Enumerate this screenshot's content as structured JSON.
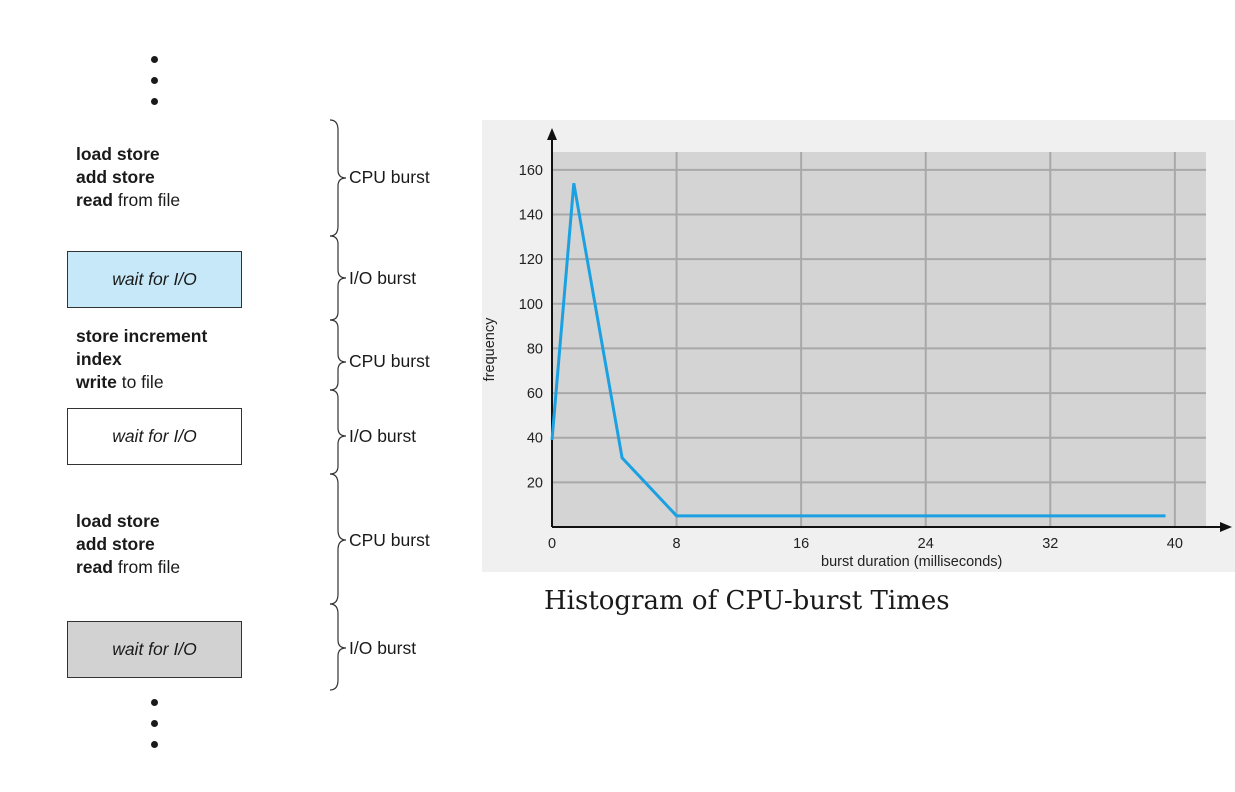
{
  "burst_diagram": {
    "ellipsis": "⋮",
    "blocks": [
      {
        "kind": "cpu",
        "lines": [
          [
            {
              "text": "load store",
              "bold": true
            }
          ],
          [
            {
              "text": "add store",
              "bold": true
            }
          ],
          [
            {
              "text": "read",
              "bold": true
            },
            {
              "text": " from file",
              "bold": false
            }
          ]
        ],
        "burst_label": "CPU burst"
      },
      {
        "kind": "io",
        "text": "wait for I/O",
        "fill": "#c7e8f8",
        "burst_label": "I/O burst"
      },
      {
        "kind": "cpu",
        "lines": [
          [
            {
              "text": "store increment",
              "bold": true
            }
          ],
          [
            {
              "text": "index",
              "bold": true
            }
          ],
          [
            {
              "text": "write",
              "bold": true
            },
            {
              "text": " to file",
              "bold": false
            }
          ]
        ],
        "burst_label": "CPU burst"
      },
      {
        "kind": "io",
        "text": "wait for I/O",
        "fill": "#ffffff",
        "burst_label": "I/O burst"
      },
      {
        "kind": "cpu",
        "lines": [
          [
            {
              "text": "load store",
              "bold": true
            }
          ],
          [
            {
              "text": "add store",
              "bold": true
            }
          ],
          [
            {
              "text": "read",
              "bold": true
            },
            {
              "text": " from file",
              "bold": false
            }
          ]
        ],
        "burst_label": "CPU burst"
      },
      {
        "kind": "io",
        "text": "wait for I/O",
        "fill": "#d2d2d2",
        "burst_label": "I/O burst"
      }
    ]
  },
  "chart_title": "Histogram of CPU-burst Times",
  "chart_data": {
    "type": "line",
    "title": "Histogram of CPU-burst Times",
    "xlabel": "burst duration (milliseconds)",
    "ylabel": "frequency",
    "xlim": [
      0,
      42
    ],
    "ylim": [
      0,
      168
    ],
    "xticks": [
      0,
      8,
      16,
      24,
      32,
      40
    ],
    "yticks": [
      20,
      40,
      60,
      80,
      100,
      120,
      140,
      160
    ],
    "grid": true,
    "background_color": "#d4d4d4",
    "grid_color": "#a8a8a8",
    "series": [
      {
        "color": "#1ba1e2",
        "x": [
          0,
          1.4,
          4.5,
          8,
          39.4
        ],
        "y": [
          39,
          154,
          31,
          5,
          5
        ]
      }
    ]
  }
}
